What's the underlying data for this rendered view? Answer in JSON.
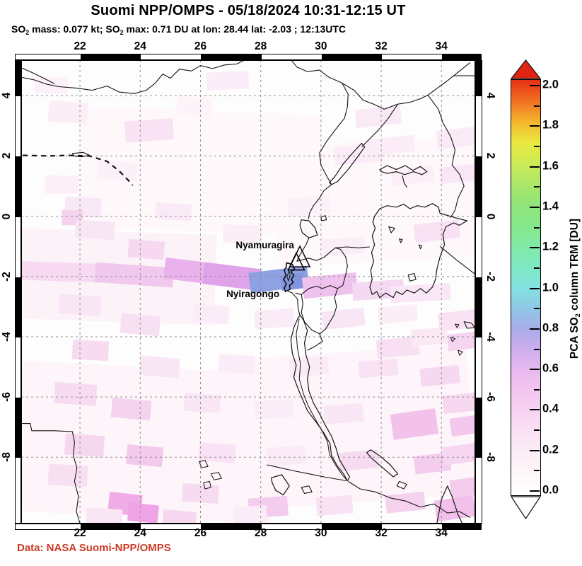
{
  "header": {
    "title": "Suomi NPP/OMPS - 05/18/2024 10:31-12:15 UT",
    "subtitle_segments": [
      [
        "t",
        "SO"
      ],
      [
        "s",
        "2"
      ],
      [
        "t",
        " mass: 0.077 kt; SO"
      ],
      [
        "s",
        "2"
      ],
      [
        "t",
        " max: 0.71 DU at lon: 28.44 lat: -2.03 ; 12:13UTC"
      ]
    ]
  },
  "credit": {
    "text": "Data: NASA Suomi-NPP/OMPS",
    "color": "#cc3a26"
  },
  "chart_data": {
    "type": "heatmap",
    "projection": "equirectangular",
    "title": "Suomi NPP/OMPS - 05/18/2024 10:31-12:15 UT",
    "subtitle": "SO2 mass: 0.077 kt; SO2 max: 0.71 DU at lon: 28.44 lat: -2.03 ; 12:13UTC",
    "stats": {
      "so2_mass_kt": 0.077,
      "so2_max_du": 0.71,
      "max_lon": 28.44,
      "max_lat": -2.03,
      "max_time": "12:13UTC"
    },
    "lon_range": [
      20.05,
      35.12
    ],
    "lat_range": [
      -10.2,
      5.18
    ],
    "lon_ticks": [
      22,
      24,
      26,
      28,
      30,
      32,
      34
    ],
    "lat_ticks": [
      4,
      2,
      0,
      -2,
      -4,
      -6,
      -8
    ],
    "grid": true,
    "grid_color": "#8f8f8f",
    "volcanoes": [
      {
        "name": "Nyamuragira",
        "lon": 29.3,
        "lat": -1.42,
        "marker": "triangle",
        "marker_h": 29,
        "marker_w": 28,
        "label_end": [
          29.11,
          -0.95
        ]
      },
      {
        "name": "Nyiragongo",
        "lon": 29.18,
        "lat": -1.57,
        "marker": "triangle",
        "marker_h": 24,
        "marker_w": 23,
        "label_end": [
          28.62,
          -2.57
        ]
      }
    ],
    "colorbar": {
      "label_segments": [
        [
          "t",
          "PCA SO"
        ],
        [
          "s",
          "2"
        ],
        [
          "t",
          " column TRM [DU]"
        ]
      ],
      "min": 0.0,
      "max": 2.0,
      "major_tick_step": 0.2,
      "minor_tick_step": 0.1,
      "tick_labels": [
        "0.0",
        "0.2",
        "0.4",
        "0.6",
        "0.8",
        "1.0",
        "1.2",
        "1.4",
        "1.6",
        "1.8",
        "2.0"
      ],
      "over_color": "#e02414",
      "under_color": "#ffffff",
      "stops": [
        [
          0.0,
          "#ffffff"
        ],
        [
          0.1,
          "#fef7fa"
        ],
        [
          0.2,
          "#fceef6"
        ],
        [
          0.3,
          "#fae2f4"
        ],
        [
          0.4,
          "#f8d4f2"
        ],
        [
          0.5,
          "#f4c6f1"
        ],
        [
          0.6,
          "#e9b9f0"
        ],
        [
          0.7,
          "#cfaeee"
        ],
        [
          0.8,
          "#a9abe9"
        ],
        [
          0.9,
          "#8fc8e6"
        ],
        [
          1.0,
          "#83e2e0"
        ],
        [
          1.1,
          "#7ee9c4"
        ],
        [
          1.2,
          "#82e9a4"
        ],
        [
          1.3,
          "#86e88b"
        ],
        [
          1.4,
          "#90e478"
        ],
        [
          1.5,
          "#abe868"
        ],
        [
          1.6,
          "#cdea55"
        ],
        [
          1.7,
          "#ebe93f"
        ],
        [
          1.8,
          "#f5b42d"
        ],
        [
          1.9,
          "#f07022"
        ],
        [
          2.0,
          "#e63014"
        ]
      ]
    },
    "so2_plume_patches": [
      [
        21.45,
        -1.85,
        2.8,
        0.62,
        2,
        "#f7daf2"
      ],
      [
        23.8,
        -1.95,
        2.6,
        0.66,
        4,
        "#f2c9ee"
      ],
      [
        25.9,
        -1.85,
        2.2,
        0.7,
        7,
        "#e9b2ec"
      ],
      [
        27.05,
        -2.0,
        1.9,
        0.72,
        7,
        "#dfa3ea"
      ],
      [
        28.6,
        -2.1,
        1.95,
        0.68,
        -7,
        "#8ea1e3"
      ],
      [
        29.05,
        -2.18,
        0.75,
        0.5,
        -7,
        "#8295de"
      ],
      [
        30.3,
        -2.3,
        1.8,
        0.7,
        -6,
        "#efc2ed"
      ],
      [
        31.9,
        -2.45,
        1.7,
        0.6,
        -4,
        "#f5d8f1"
      ],
      [
        33.3,
        -2.55,
        2.0,
        0.55,
        -3,
        "#f9e6f6"
      ]
    ],
    "so2_faint_patches": [
      [
        23.0,
        -2.0,
        7,
        3,
        2,
        "#fcf3f8"
      ],
      [
        24.0,
        -7.5,
        9,
        5,
        3,
        "#fdf5f9"
      ],
      [
        31.0,
        -7.0,
        8,
        5,
        -4,
        "#fdf5fa"
      ],
      [
        26.0,
        1.5,
        8,
        4,
        2,
        "#fef8fb"
      ],
      [
        32.0,
        0.5,
        7,
        4,
        -3,
        "#fef8fb"
      ],
      [
        21.6,
        3.45,
        1.3,
        0.7,
        4,
        "#fbeef7"
      ],
      [
        24.3,
        2.85,
        1.6,
        0.7,
        -4,
        "#f8e2f3"
      ],
      [
        25.8,
        3.65,
        1.2,
        0.6,
        3,
        "#fdf4fa"
      ],
      [
        21.05,
        4.35,
        1.1,
        0.55,
        2,
        "#fcf1f9"
      ],
      [
        26.9,
        4.5,
        1.4,
        0.6,
        -3,
        "#fbeef8"
      ],
      [
        31.9,
        3.3,
        1.5,
        0.6,
        -6,
        "#faeaf6"
      ],
      [
        32.3,
        2.35,
        1.6,
        0.55,
        -6,
        "#fbecf7"
      ],
      [
        21.4,
        1.05,
        1.1,
        0.6,
        1,
        "#fceff8"
      ],
      [
        22.1,
        0.3,
        1.2,
        0.65,
        3,
        "#f9e8f5"
      ],
      [
        21.75,
        -0.05,
        0.7,
        0.5,
        0,
        "#f5d3ef"
      ],
      [
        22.5,
        -0.45,
        1.3,
        0.6,
        4,
        "#f9e6f4"
      ],
      [
        24.2,
        -1.1,
        1.2,
        0.6,
        5,
        "#f6d9f0"
      ],
      [
        23.25,
        1.5,
        1.3,
        0.6,
        4,
        "#fcf1f9"
      ],
      [
        25.1,
        0.15,
        1.2,
        0.55,
        4,
        "#faeaf6"
      ],
      [
        27.4,
        -0.6,
        1.3,
        0.6,
        3,
        "#fbeef7"
      ],
      [
        29.6,
        0.35,
        1.4,
        0.6,
        -5,
        "#fcf1f9"
      ],
      [
        31.25,
        2.05,
        1.6,
        0.6,
        -5,
        "#fbecf7"
      ],
      [
        33.05,
        1.35,
        1.4,
        0.55,
        -6,
        "#fceff8"
      ],
      [
        34.5,
        2.6,
        1.3,
        0.6,
        -7,
        "#faeaf6"
      ],
      [
        34.55,
        1.4,
        1.2,
        0.55,
        -6,
        "#f9e7f5"
      ],
      [
        33.85,
        -0.5,
        1.5,
        0.6,
        -7,
        "#f8e1f3"
      ],
      [
        30.75,
        -1.0,
        1.4,
        0.55,
        -5,
        "#fbeef7"
      ],
      [
        22.0,
        -2.95,
        1.4,
        0.65,
        4,
        "#f9e6f4"
      ],
      [
        24.0,
        -3.6,
        1.3,
        0.65,
        5,
        "#f8e0f3"
      ],
      [
        26.35,
        -3.25,
        1.2,
        0.6,
        4,
        "#fbedf7"
      ],
      [
        28.45,
        -3.4,
        1.3,
        0.6,
        -4,
        "#faebf6"
      ],
      [
        30.75,
        -3.4,
        1.4,
        0.6,
        -6,
        "#f9e6f4"
      ],
      [
        32.55,
        -3.25,
        1.3,
        0.55,
        -5,
        "#fbeef7"
      ],
      [
        34.55,
        -3.45,
        1.3,
        0.6,
        -7,
        "#f8e2f3"
      ],
      [
        34.7,
        -4.15,
        1.0,
        0.55,
        -7,
        "#f5d4ef"
      ],
      [
        22.35,
        -4.45,
        1.2,
        0.65,
        3,
        "#f7dcf1"
      ],
      [
        24.65,
        -5.0,
        1.3,
        0.65,
        5,
        "#f9e6f4"
      ],
      [
        27.2,
        -4.9,
        1.2,
        0.6,
        4,
        "#fbedf7"
      ],
      [
        29.6,
        -5.0,
        1.3,
        0.6,
        -5,
        "#faebf6"
      ],
      [
        31.9,
        -5.05,
        1.3,
        0.55,
        -5,
        "#f8e2f3"
      ],
      [
        33.95,
        -5.3,
        1.3,
        0.6,
        -6,
        "#f6d8f0"
      ],
      [
        32.55,
        -4.35,
        1.4,
        0.6,
        -5,
        "#f8e0f2"
      ],
      [
        33.6,
        -4.0,
        1.2,
        0.55,
        -5,
        "#fae9f5"
      ],
      [
        21.85,
        -5.9,
        1.4,
        0.7,
        4,
        "#f7dcf1"
      ],
      [
        23.7,
        -6.4,
        1.3,
        0.65,
        5,
        "#f5d2ee"
      ],
      [
        26.05,
        -6.2,
        1.2,
        0.6,
        4,
        "#f9e6f4"
      ],
      [
        28.45,
        -6.4,
        1.3,
        0.6,
        -4,
        "#fbedf7"
      ],
      [
        30.75,
        -6.55,
        1.3,
        0.6,
        -5,
        "#f9e6f4"
      ],
      [
        33.1,
        -6.9,
        1.5,
        0.85,
        -8,
        "#f2c2ea"
      ],
      [
        34.65,
        -6.2,
        1.2,
        0.6,
        -6,
        "#f6d8f0"
      ],
      [
        34.8,
        -6.95,
        1.0,
        0.6,
        -8,
        "#f3c8ec"
      ],
      [
        22.15,
        -7.6,
        1.3,
        0.7,
        4,
        "#f6d7f0"
      ],
      [
        24.15,
        -7.95,
        1.2,
        0.65,
        5,
        "#f3c9ec"
      ],
      [
        26.55,
        -7.85,
        1.2,
        0.6,
        4,
        "#f8e2f3"
      ],
      [
        28.85,
        -7.95,
        1.3,
        0.6,
        -4,
        "#faebf6"
      ],
      [
        31.25,
        -8.1,
        1.3,
        0.6,
        -5,
        "#f7dcf1"
      ],
      [
        33.7,
        -8.2,
        1.2,
        0.6,
        -7,
        "#f4cdee"
      ],
      [
        34.6,
        -7.9,
        1.1,
        0.6,
        -8,
        "#f6d6f0"
      ],
      [
        21.6,
        -8.6,
        1.3,
        0.7,
        3,
        "#f8e0f2"
      ],
      [
        23.5,
        -9.55,
        1.1,
        0.7,
        6,
        "#f0ace7"
      ],
      [
        24.1,
        -9.85,
        1.0,
        0.6,
        6,
        "#eea4e6"
      ],
      [
        26.0,
        -9.2,
        1.2,
        0.6,
        4,
        "#f7dcf1"
      ],
      [
        28.25,
        -9.65,
        1.3,
        0.65,
        -4,
        "#f4cdee"
      ],
      [
        30.45,
        -9.6,
        1.2,
        0.6,
        -5,
        "#f8e2f3"
      ],
      [
        32.8,
        -9.5,
        1.3,
        0.6,
        -6,
        "#f5d2ee"
      ],
      [
        34.45,
        -9.7,
        1.3,
        0.7,
        -8,
        "#f2c0ea"
      ],
      [
        34.8,
        -9.0,
        1.0,
        0.6,
        -8,
        "#f4ccee"
      ],
      [
        22.8,
        -10.0,
        1.2,
        0.6,
        4,
        "#f9e6f4"
      ],
      [
        25.3,
        -10.05,
        1.1,
        0.55,
        5,
        "#f6d7f0"
      ],
      [
        27.65,
        -9.9,
        1.1,
        0.55,
        -3,
        "#fbedf7"
      ]
    ]
  }
}
